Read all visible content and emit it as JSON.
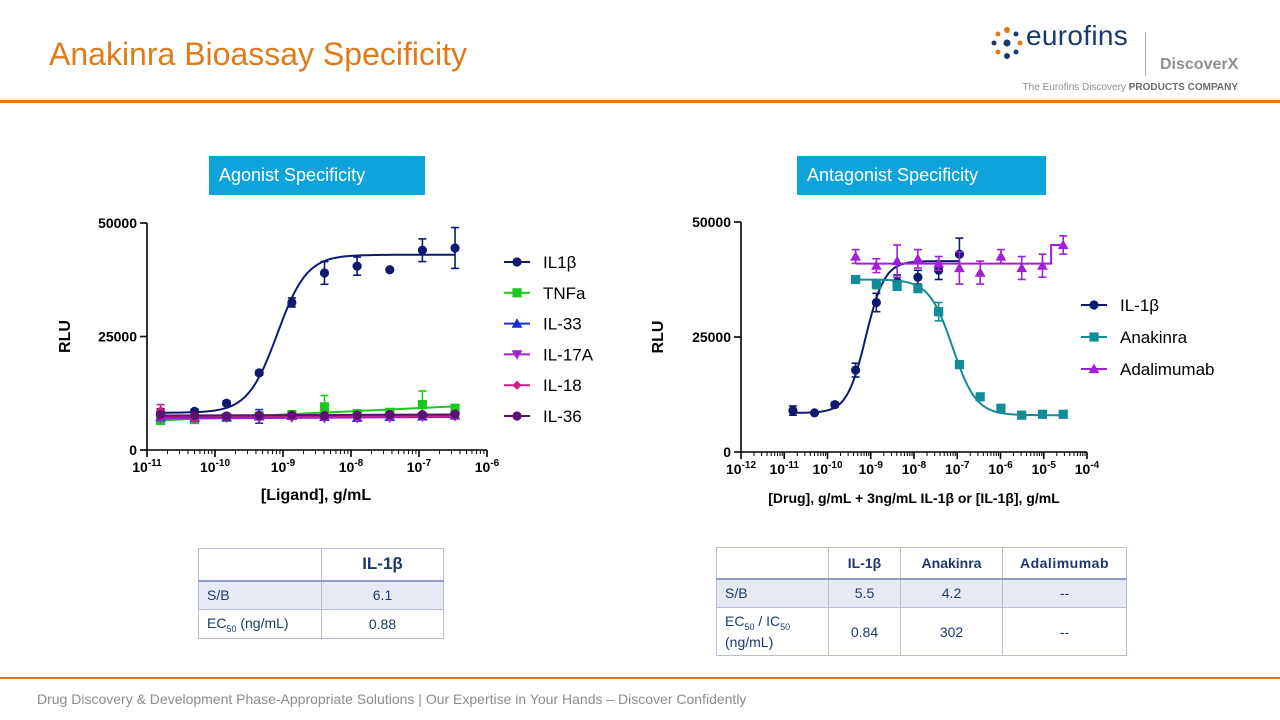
{
  "page": {
    "title": "Anakinra Bioassay Specificity",
    "footer": "Drug Discovery & Development Phase-Appropriate Solutions | Our Expertise in Your Hands – Discover Confidently"
  },
  "logo": {
    "wordmark": "eurofins",
    "sub": "DiscoverX",
    "tagline_prefix": "The Eurofins Discovery",
    "tagline_bold": "PRODUCTS COMPANY"
  },
  "colors": {
    "accent": "#e07b1a",
    "label_bg": "#0fa3dc",
    "navy": "#0d1a70",
    "green": "#1fc61f",
    "blue": "#1c2fd6",
    "violet": "#a11fd4",
    "magenta": "#d01d86",
    "purple": "#5a1470",
    "teal": "#128c96"
  },
  "panels": {
    "agonist_label": "Agonist Specificity",
    "antagonist_label": "Antagonist Specificity"
  },
  "chart_data": [
    {
      "type": "scatter",
      "title": "Agonist Specificity",
      "xlabel": "[Ligand], g/mL",
      "ylabel": "RLU",
      "x_scale": "log",
      "xlim_exp": [
        -11,
        -6
      ],
      "ylim": [
        0,
        50000
      ],
      "yticks": [
        0,
        25000,
        50000
      ],
      "legend": "right",
      "series": [
        {
          "name": "IL1β",
          "marker": "circle",
          "color": "#0d1a70",
          "fit": "sigmoid",
          "x": [
            -10.8,
            -10.3,
            -9.83,
            -9.35,
            -8.87,
            -8.39,
            -7.91,
            -7.43,
            -6.95,
            -6.47
          ],
          "y": [
            8200,
            8500,
            10300,
            17000,
            32500,
            39000,
            40500,
            39700,
            44000,
            44500
          ],
          "err": [
            900,
            500,
            500,
            500,
            1000,
            2500,
            2000,
            0,
            2500,
            4500
          ]
        },
        {
          "name": "TNFa",
          "marker": "square",
          "color": "#1fc61f",
          "fit": "linear",
          "x": [
            -10.8,
            -10.3,
            -9.83,
            -9.35,
            -8.87,
            -8.39,
            -7.91,
            -7.43,
            -6.95,
            -6.47
          ],
          "y": [
            6500,
            6700,
            7200,
            7500,
            7800,
            9500,
            8000,
            8300,
            10000,
            9200
          ],
          "err": [
            300,
            300,
            300,
            500,
            400,
            2500,
            500,
            500,
            3000,
            500
          ]
        },
        {
          "name": "IL-33",
          "marker": "triangle-up",
          "color": "#1c2fd6",
          "fit": "linear",
          "x": [
            -10.8,
            -10.3,
            -9.83,
            -9.35,
            -8.87,
            -8.39,
            -7.91,
            -7.43,
            -6.95,
            -6.47
          ],
          "y": [
            7200,
            7100,
            7200,
            7400,
            7500,
            7300,
            7100,
            7300,
            7400,
            7600
          ],
          "err": [
            400,
            300,
            300,
            1500,
            500,
            400,
            300,
            300,
            400,
            400
          ]
        },
        {
          "name": "IL-17A",
          "marker": "triangle-down",
          "color": "#a11fd4",
          "fit": "linear",
          "x": [
            -10.8,
            -10.3,
            -9.83,
            -9.35,
            -8.87,
            -8.39,
            -7.91,
            -7.43,
            -6.95,
            -6.47
          ],
          "y": [
            7000,
            6900,
            7100,
            7000,
            7100,
            7000,
            7000,
            7100,
            7300,
            7400
          ],
          "err": [
            300,
            300,
            300,
            300,
            300,
            300,
            300,
            300,
            300,
            300
          ]
        },
        {
          "name": "IL-18",
          "marker": "diamond",
          "color": "#d01d86",
          "fit": "linear",
          "x": [
            -10.8,
            -10.3,
            -9.83,
            -9.35,
            -8.87,
            -8.39,
            -7.91,
            -7.43,
            -6.95,
            -6.47
          ],
          "y": [
            8700,
            6800,
            7100,
            7200,
            7300,
            7400,
            7500,
            7600,
            7700,
            7800
          ],
          "err": [
            1300,
            300,
            300,
            300,
            300,
            300,
            300,
            300,
            300,
            300
          ]
        },
        {
          "name": "IL-36",
          "marker": "circle",
          "color": "#5a1470",
          "fit": "linear",
          "x": [
            -10.8,
            -10.3,
            -9.83,
            -9.35,
            -8.87,
            -8.39,
            -7.91,
            -7.43,
            -6.95,
            -6.47
          ],
          "y": [
            7800,
            7600,
            7500,
            7600,
            7700,
            7600,
            7700,
            7800,
            7800,
            7900
          ],
          "err": [
            300,
            300,
            300,
            300,
            300,
            300,
            300,
            300,
            300,
            300
          ]
        }
      ]
    },
    {
      "type": "scatter",
      "title": "Antagonist Specificity",
      "xlabel": "[Drug], g/mL + 3ng/mL IL-1β or [IL-1β], g/mL",
      "ylabel": "RLU",
      "x_scale": "log",
      "xlim_exp": [
        -12,
        -4
      ],
      "ylim": [
        0,
        50000
      ],
      "yticks": [
        0,
        25000,
        50000
      ],
      "legend": "right",
      "series": [
        {
          "name": "IL-1β",
          "marker": "circle",
          "color": "#0d1a70",
          "fit": "sigmoid",
          "x": [
            -10.8,
            -10.3,
            -9.83,
            -9.35,
            -8.87,
            -8.39,
            -7.91,
            -7.43,
            -6.95
          ],
          "y": [
            9000,
            8500,
            10300,
            17800,
            32500,
            37000,
            38000,
            39500,
            43000
          ],
          "err": [
            1000,
            300,
            500,
            1500,
            2000,
            1500,
            1500,
            2000,
            3500
          ]
        },
        {
          "name": "Anakinra",
          "marker": "square",
          "color": "#128c96",
          "fit": "inhibition",
          "x": [
            -9.35,
            -8.87,
            -8.39,
            -7.91,
            -7.43,
            -6.95,
            -6.47,
            -5.99,
            -5.51,
            -5.03,
            -4.55
          ],
          "y": [
            37500,
            36500,
            36000,
            35500,
            30500,
            19000,
            12000,
            9500,
            8000,
            8200,
            8200
          ],
          "err": [
            500,
            1000,
            500,
            500,
            2000,
            500,
            500,
            500,
            500,
            500,
            500
          ]
        },
        {
          "name": "Adalimumab",
          "marker": "triangle-up",
          "color": "#a11fd4",
          "fit": "flat",
          "x": [
            -9.35,
            -8.87,
            -8.39,
            -7.91,
            -7.43,
            -6.95,
            -6.47,
            -5.99,
            -5.51,
            -5.03,
            -4.55
          ],
          "y": [
            42500,
            40500,
            41500,
            42000,
            41000,
            40000,
            39000,
            42500,
            40000,
            40500,
            45000
          ],
          "err": [
            1500,
            1500,
            3500,
            2000,
            1500,
            3500,
            2500,
            1500,
            2500,
            2500,
            2000
          ]
        }
      ]
    }
  ],
  "tables": {
    "agonist": {
      "header": [
        "",
        "IL-1β"
      ],
      "rows": [
        {
          "label": "S/B",
          "values": [
            "6.1"
          ]
        },
        {
          "label_main": "EC",
          "label_sub": "50",
          "label_tail": " (ng/mL)",
          "values": [
            "0.88"
          ]
        }
      ]
    },
    "antagonist": {
      "header": [
        "",
        "IL-1β",
        "Anakinra",
        "Adalimumab"
      ],
      "rows": [
        {
          "label": "S/B",
          "values": [
            "5.5",
            "4.2",
            "--"
          ]
        },
        {
          "label_a": "EC",
          "label_a_sub": "50",
          "label_mid": " / IC",
          "label_b_sub": "50",
          "label_tail": "(ng/mL)",
          "values": [
            "0.84",
            "302",
            "--"
          ]
        }
      ]
    }
  }
}
